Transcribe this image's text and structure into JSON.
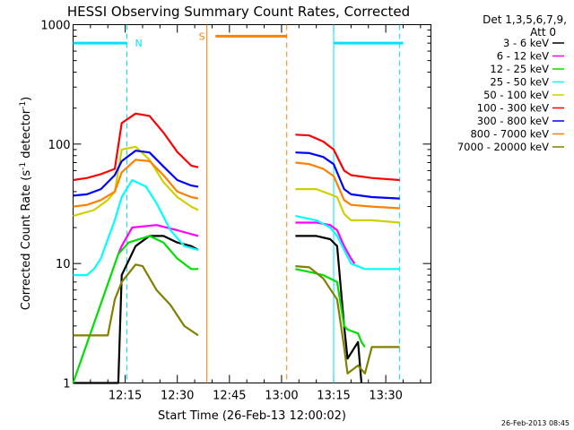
{
  "chart_data": {
    "type": "line",
    "title": "HESSI Observing Summary Count Rates, Corrected",
    "xlabel": "Start Time (26-Feb-13 12:00:02)",
    "ylabel_main": "Corrected Count Rate (s",
    "ylabel_sup1": "-1",
    "ylabel_mid": " detector",
    "ylabel_sup2": "-1",
    "ylabel_end": ")",
    "y_scale": "log",
    "ylim": [
      1,
      1000
    ],
    "xlim_minutes": [
      0,
      103
    ],
    "x_ticks": [
      {
        "min": 15,
        "label": "12:15"
      },
      {
        "min": 30,
        "label": "12:30"
      },
      {
        "min": 45,
        "label": "12:45"
      },
      {
        "min": 60,
        "label": "13:00"
      },
      {
        "min": 75,
        "label": "13:15"
      },
      {
        "min": 90,
        "label": "13:30"
      }
    ],
    "y_ticks": [
      {
        "value": 1,
        "label": "1"
      },
      {
        "value": 10,
        "label": "10"
      },
      {
        "value": 100,
        "label": "100"
      },
      {
        "value": 1000,
        "label": "1000"
      }
    ],
    "legend_header": [
      "Det 1,3,5,6,7,9,",
      "Att 0"
    ],
    "legend_position": "right",
    "footer_date": "26-Feb-2013 08:45",
    "night_bar": {
      "label": "N",
      "color": "#00e0ff",
      "level": 700,
      "segments": [
        [
          0,
          15.5
        ],
        [
          75,
          95
        ]
      ],
      "dashed_at": [
        15.5,
        94
      ],
      "solid_at": [
        75
      ]
    },
    "saa_bar": {
      "label": "S",
      "color": "#ff8000",
      "level": 800,
      "segment": [
        41,
        61.5
      ],
      "solid_at": [
        38.5
      ],
      "dashed_at": [
        61.5
      ]
    },
    "gap_minutes": [
      36,
      64
    ],
    "series": [
      {
        "name": "3 - 6 keV",
        "color": "#000000",
        "points": [
          [
            0,
            1
          ],
          [
            13,
            1
          ],
          [
            14,
            8
          ],
          [
            18,
            14
          ],
          [
            22,
            17
          ],
          [
            26,
            17
          ],
          [
            30,
            15
          ],
          [
            34,
            14
          ],
          [
            36,
            13
          ],
          [
            64,
            17
          ],
          [
            70,
            17
          ],
          [
            74,
            16
          ],
          [
            76,
            14
          ],
          [
            78,
            3
          ],
          [
            79,
            1.6
          ],
          [
            82,
            2.2
          ],
          [
            83,
            1
          ]
        ]
      },
      {
        "name": "6 - 12 keV",
        "color": "#ff00ff",
        "points": [
          [
            13,
            12
          ],
          [
            14,
            14
          ],
          [
            17,
            20
          ],
          [
            24,
            21
          ],
          [
            30,
            19
          ],
          [
            36,
            17
          ],
          [
            64,
            22
          ],
          [
            70,
            22
          ],
          [
            74,
            21
          ],
          [
            76,
            19
          ],
          [
            78,
            14
          ],
          [
            80,
            11
          ],
          [
            81,
            10
          ]
        ]
      },
      {
        "name": "12 - 25 keV",
        "color": "#00e000",
        "points": [
          [
            0,
            1
          ],
          [
            13,
            12
          ],
          [
            16,
            15
          ],
          [
            22,
            17
          ],
          [
            26,
            15
          ],
          [
            30,
            11
          ],
          [
            34,
            9
          ],
          [
            36,
            9
          ],
          [
            64,
            9
          ],
          [
            68,
            8.5
          ],
          [
            72,
            8
          ],
          [
            76,
            7
          ],
          [
            78,
            3
          ],
          [
            79,
            2.8
          ],
          [
            82,
            2.6
          ],
          [
            83,
            2.2
          ],
          [
            84,
            2
          ]
        ]
      },
      {
        "name": "25 - 50 keV",
        "color": "#00ffff",
        "points": [
          [
            0,
            8
          ],
          [
            4,
            8
          ],
          [
            6,
            9
          ],
          [
            8,
            11
          ],
          [
            10,
            16
          ],
          [
            12,
            23
          ],
          [
            14,
            36
          ],
          [
            17,
            50
          ],
          [
            21,
            44
          ],
          [
            24,
            32
          ],
          [
            28,
            19
          ],
          [
            32,
            14
          ],
          [
            36,
            13
          ],
          [
            64,
            25
          ],
          [
            70,
            23
          ],
          [
            74,
            20
          ],
          [
            76,
            17
          ],
          [
            78,
            13
          ],
          [
            80,
            10
          ],
          [
            84,
            9
          ],
          [
            94,
            9
          ]
        ]
      },
      {
        "name": "50 - 100 keV",
        "color": "#d0d000",
        "points": [
          [
            0,
            25
          ],
          [
            6,
            28
          ],
          [
            10,
            34
          ],
          [
            12,
            40
          ],
          [
            14,
            90
          ],
          [
            18,
            95
          ],
          [
            22,
            74
          ],
          [
            26,
            48
          ],
          [
            30,
            36
          ],
          [
            34,
            30
          ],
          [
            36,
            28
          ],
          [
            64,
            42
          ],
          [
            70,
            42
          ],
          [
            74,
            38
          ],
          [
            76,
            36
          ],
          [
            78,
            26
          ],
          [
            80,
            23
          ],
          [
            86,
            23
          ],
          [
            94,
            22
          ]
        ]
      },
      {
        "name": "100 - 300 keV",
        "color": "#ff0000",
        "points": [
          [
            0,
            50
          ],
          [
            4,
            52
          ],
          [
            8,
            56
          ],
          [
            12,
            62
          ],
          [
            14,
            150
          ],
          [
            18,
            180
          ],
          [
            22,
            172
          ],
          [
            26,
            125
          ],
          [
            30,
            86
          ],
          [
            34,
            66
          ],
          [
            36,
            64
          ],
          [
            64,
            120
          ],
          [
            68,
            118
          ],
          [
            72,
            105
          ],
          [
            75,
            90
          ],
          [
            78,
            60
          ],
          [
            80,
            55
          ],
          [
            86,
            52
          ],
          [
            94,
            50
          ]
        ]
      },
      {
        "name": "300 - 800 keV",
        "color": "#0000ff",
        "points": [
          [
            0,
            37
          ],
          [
            4,
            38
          ],
          [
            8,
            42
          ],
          [
            12,
            55
          ],
          [
            14,
            72
          ],
          [
            18,
            88
          ],
          [
            22,
            85
          ],
          [
            26,
            65
          ],
          [
            30,
            50
          ],
          [
            34,
            45
          ],
          [
            36,
            44
          ],
          [
            64,
            85
          ],
          [
            68,
            84
          ],
          [
            72,
            78
          ],
          [
            75,
            68
          ],
          [
            78,
            42
          ],
          [
            80,
            38
          ],
          [
            86,
            36
          ],
          [
            94,
            35
          ]
        ]
      },
      {
        "name": "800 - 7000 keV",
        "color": "#ff8000",
        "points": [
          [
            0,
            30
          ],
          [
            4,
            31
          ],
          [
            8,
            34
          ],
          [
            12,
            40
          ],
          [
            14,
            58
          ],
          [
            18,
            74
          ],
          [
            22,
            72
          ],
          [
            26,
            55
          ],
          [
            30,
            40
          ],
          [
            34,
            36
          ],
          [
            36,
            35
          ],
          [
            64,
            70
          ],
          [
            68,
            68
          ],
          [
            72,
            62
          ],
          [
            75,
            54
          ],
          [
            78,
            34
          ],
          [
            80,
            31
          ],
          [
            86,
            30
          ],
          [
            94,
            29
          ]
        ]
      },
      {
        "name": "7000 - 20000 keV",
        "color": "#808000",
        "points": [
          [
            0,
            2.5
          ],
          [
            10,
            2.5
          ],
          [
            12,
            5
          ],
          [
            14,
            7
          ],
          [
            18,
            9.8
          ],
          [
            20,
            9.5
          ],
          [
            24,
            6
          ],
          [
            28,
            4.5
          ],
          [
            32,
            3
          ],
          [
            36,
            2.5
          ],
          [
            64,
            9.5
          ],
          [
            68,
            9.3
          ],
          [
            72,
            7.5
          ],
          [
            76,
            5
          ],
          [
            78,
            2
          ],
          [
            79,
            1.2
          ],
          [
            82,
            1.4
          ],
          [
            84,
            1.2
          ],
          [
            86,
            2
          ],
          [
            94,
            2
          ]
        ]
      }
    ]
  }
}
